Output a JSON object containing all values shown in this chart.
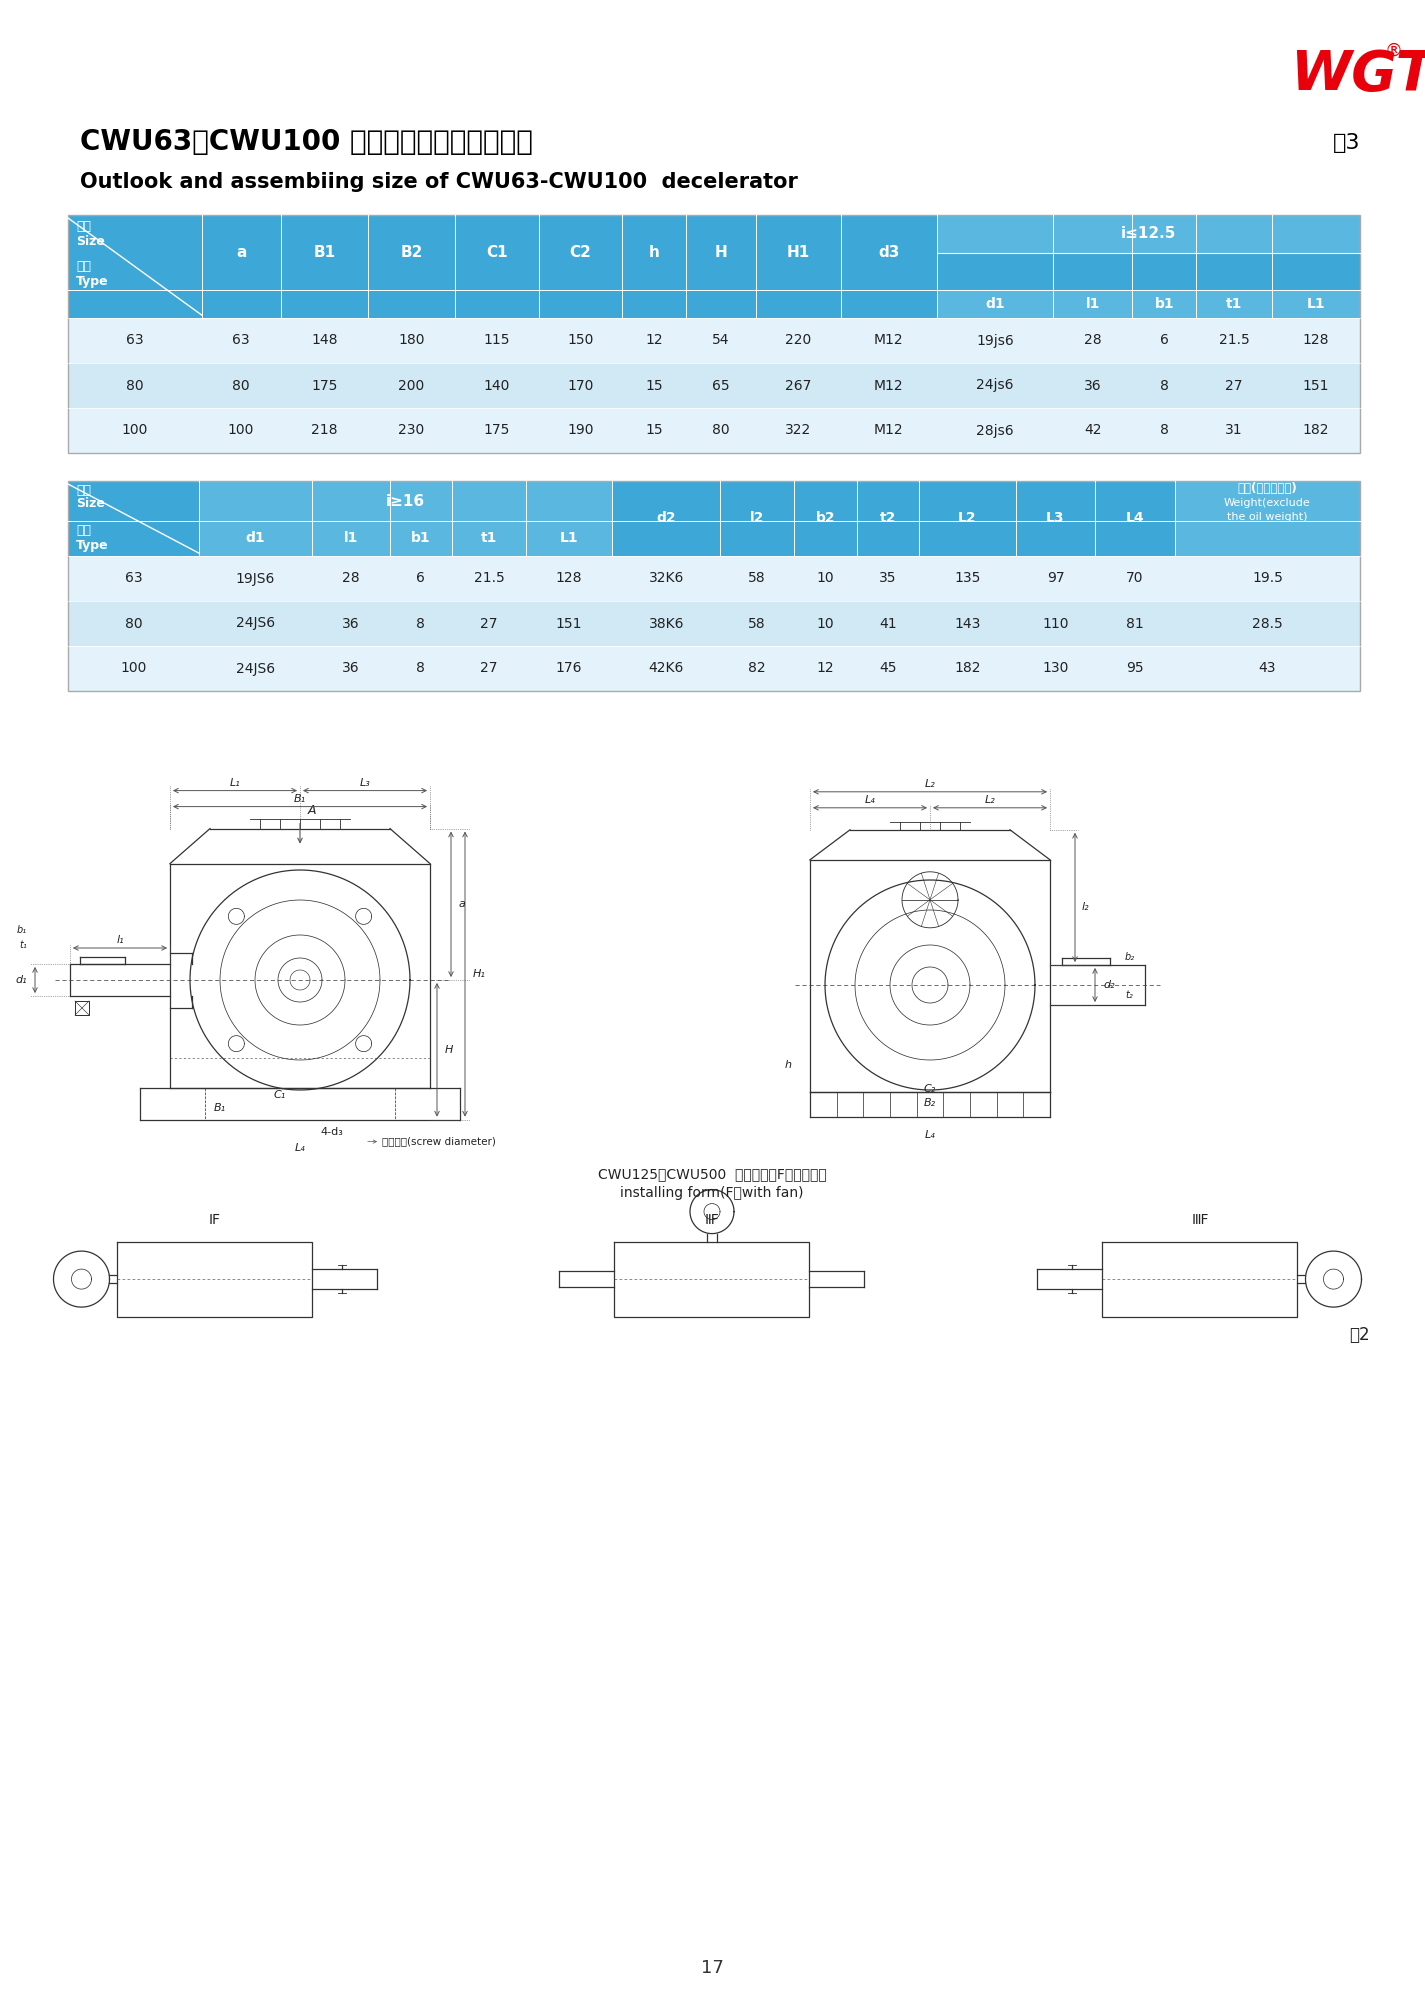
{
  "page_bg": "#ffffff",
  "logo_color": "#e8000a",
  "table3_label": "表3",
  "title_cn": "CWU63～CWU100 型减速器外形及安装尺寸",
  "title_en": "Outlook and assembiing size of CWU63-CWU100  decelerator",
  "header_bg": "#3da8d8",
  "header_bg2": "#5ab8e0",
  "row_bg1": "#e4f3fb",
  "row_bg2": "#d0e9f5",
  "header_text": "#ffffff",
  "data_text": "#222222",
  "table1_rows": [
    [
      "63",
      "63",
      "148",
      "180",
      "115",
      "150",
      "12",
      "54",
      "220",
      "M12",
      "19js6",
      "28",
      "6",
      "21.5",
      "128"
    ],
    [
      "80",
      "80",
      "175",
      "200",
      "140",
      "170",
      "15",
      "65",
      "267",
      "M12",
      "24js6",
      "36",
      "8",
      "27",
      "151"
    ],
    [
      "100",
      "100",
      "218",
      "230",
      "175",
      "190",
      "15",
      "80",
      "322",
      "M12",
      "28js6",
      "42",
      "8",
      "31",
      "182"
    ]
  ],
  "table2_rows": [
    [
      "63",
      "19JS6",
      "28",
      "6",
      "21.5",
      "128",
      "32K6",
      "58",
      "10",
      "35",
      "135",
      "97",
      "70",
      "19.5"
    ],
    [
      "80",
      "24JS6",
      "36",
      "8",
      "27",
      "151",
      "38K6",
      "58",
      "10",
      "41",
      "143",
      "110",
      "81",
      "28.5"
    ],
    [
      "100",
      "24JS6",
      "36",
      "8",
      "27",
      "176",
      "42K6",
      "82",
      "12",
      "45",
      "182",
      "130",
      "95",
      "43"
    ]
  ],
  "bottom_cn": "CWU125～CWU500  装配型式（F－带风扇）",
  "bottom_en": "installing form(F－with fan)",
  "fig_label": "图2",
  "page_num": "17",
  "lc": "#333333",
  "lc_dim": "#555555"
}
